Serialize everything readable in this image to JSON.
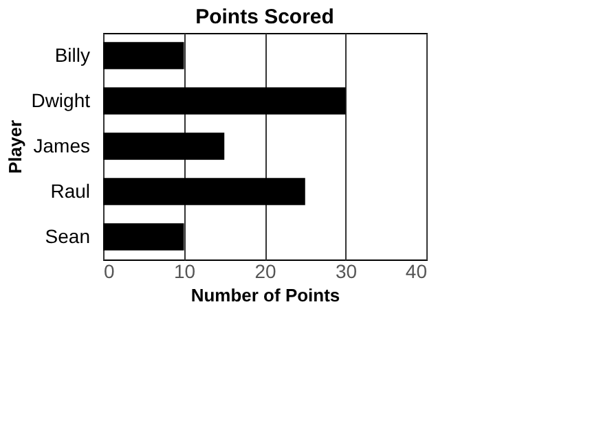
{
  "chart_data": {
    "type": "bar",
    "orientation": "horizontal",
    "title": "Points Scored",
    "categories": [
      "Billy",
      "Dwight",
      "James",
      "Raul",
      "Sean"
    ],
    "values": [
      10,
      30,
      15,
      25,
      10
    ],
    "color": "#000000",
    "xlim": [
      0,
      40
    ],
    "xticks": [
      0,
      10,
      20,
      30,
      40
    ],
    "grid": "x",
    "xlabel": "Number of Points",
    "ylabel": "Player"
  }
}
